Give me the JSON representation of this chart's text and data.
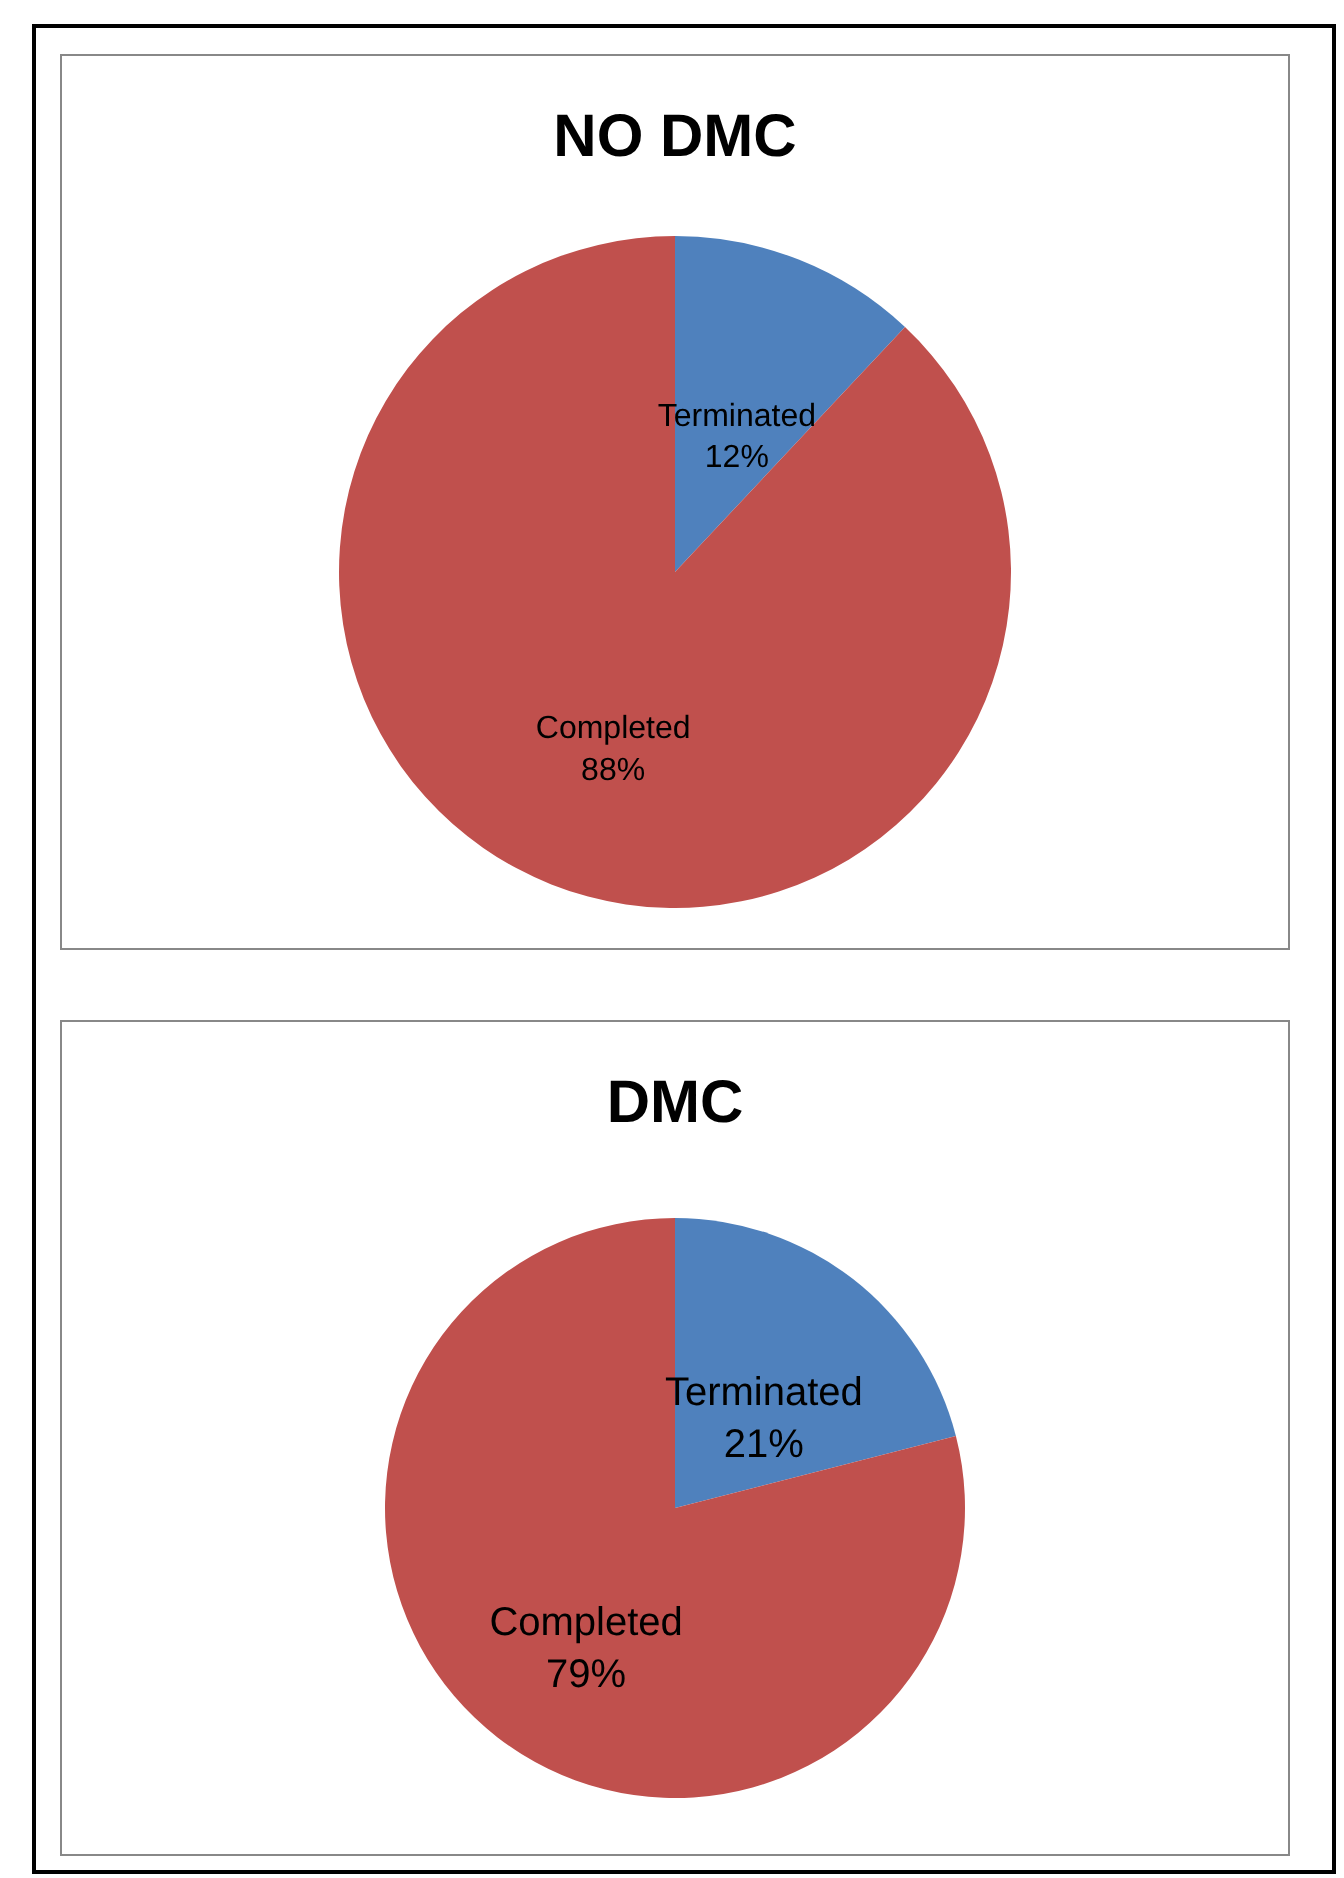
{
  "chart_data": [
    {
      "type": "pie",
      "title": "NO DMC",
      "categories": [
        "Terminated",
        "Completed"
      ],
      "values": [
        12,
        88
      ],
      "colors": [
        "#4f81bd",
        "#c0504d"
      ],
      "value_labels": [
        "12%",
        "88%"
      ],
      "legend": false
    },
    {
      "type": "pie",
      "title": "DMC",
      "categories": [
        "Terminated",
        "Completed"
      ],
      "values": [
        21,
        79
      ],
      "colors": [
        "#4f81bd",
        "#c0504d"
      ],
      "value_labels": [
        "21%",
        "79%"
      ],
      "legend": false
    }
  ]
}
